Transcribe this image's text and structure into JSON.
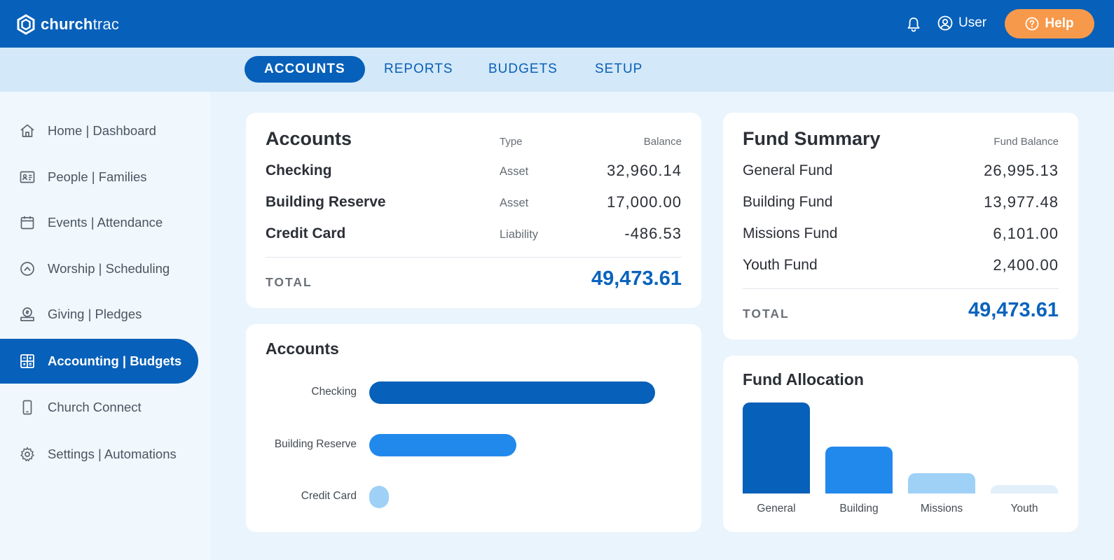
{
  "header": {
    "brand_bold": "church",
    "brand_light": "trac",
    "user_label": "User",
    "help_label": "Help"
  },
  "tabs": [
    "ACCOUNTS",
    "REPORTS",
    "BUDGETS",
    "SETUP"
  ],
  "sidebar": {
    "items": [
      {
        "label": "Home | Dashboard",
        "icon": "home-icon"
      },
      {
        "label": "People | Families",
        "icon": "id-card-icon"
      },
      {
        "label": "Events | Attendance",
        "icon": "calendar-icon"
      },
      {
        "label": "Worship | Scheduling",
        "icon": "worship-icon"
      },
      {
        "label": "Giving | Pledges",
        "icon": "giving-icon"
      },
      {
        "label": "Accounting | Budgets",
        "icon": "accounting-icon",
        "active": true
      },
      {
        "label": "Church Connect",
        "icon": "phone-icon"
      },
      {
        "label": "Settings | Automations",
        "icon": "gear-icon"
      }
    ]
  },
  "accounts_card": {
    "title": "Accounts",
    "col_type": "Type",
    "col_balance": "Balance",
    "rows": [
      {
        "name": "Checking",
        "type": "Asset",
        "balance": "32,960.14"
      },
      {
        "name": "Building Reserve",
        "type": "Asset",
        "balance": "17,000.00"
      },
      {
        "name": "Credit Card",
        "type": "Liability",
        "balance": "-486.53"
      }
    ],
    "total_label": "TOTAL",
    "total_value": "49,473.61"
  },
  "fund_card": {
    "title": "Fund Summary",
    "col_balance": "Fund Balance",
    "rows": [
      {
        "name": "General Fund",
        "balance": "26,995.13"
      },
      {
        "name": "Building Fund",
        "balance": "13,977.48"
      },
      {
        "name": "Missions Fund",
        "balance": "6,101.00"
      },
      {
        "name": "Youth Fund",
        "balance": "2,400.00"
      }
    ],
    "total_label": "TOTAL",
    "total_value": "49,473.61"
  },
  "chart_data": [
    {
      "type": "bar",
      "orientation": "horizontal",
      "title": "Accounts",
      "categories": [
        "Checking",
        "Building Reserve",
        "Credit Card"
      ],
      "values": [
        32960.14,
        17000.0,
        486.53
      ],
      "colors": [
        "#0760b9",
        "#2289ec",
        "#9fd1f7"
      ]
    },
    {
      "type": "bar",
      "orientation": "vertical",
      "title": "Fund Allocation",
      "categories": [
        "General",
        "Building",
        "Missions",
        "Youth"
      ],
      "values": [
        26995.13,
        13977.48,
        6101.0,
        2400.0
      ],
      "colors": [
        "#0760b9",
        "#2289ec",
        "#9fd1f7",
        "#e1effb"
      ]
    }
  ],
  "colors": {
    "primary": "#0760b9",
    "accent": "#f7994a",
    "tabbar": "#d3e8f8"
  }
}
